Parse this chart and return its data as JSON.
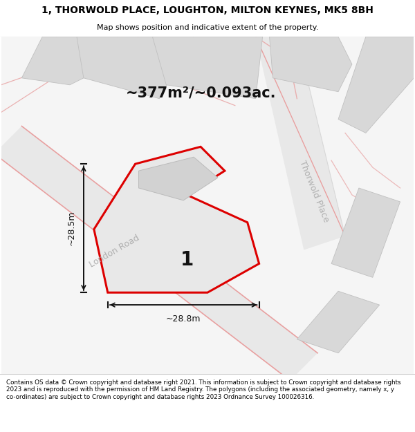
{
  "title_line1": "1, THORWOLD PLACE, LOUGHTON, MILTON KEYNES, MK5 8BH",
  "title_line2": "Map shows position and indicative extent of the property.",
  "area_text": "~377m²/~0.093ac.",
  "label_number": "1",
  "dim_width": "~28.8m",
  "dim_height": "~28.5m",
  "road_label1": "London Road",
  "road_label2": "Thorwold Place",
  "footer_text": "Contains OS data © Crown copyright and database right 2021. This information is subject to Crown copyright and database rights 2023 and is reproduced with the permission of HM Land Registry. The polygons (including the associated geometry, namely x, y co-ordinates) are subject to Crown copyright and database rights 2023 Ordnance Survey 100026316.",
  "map_bg": "#f0f0f0",
  "white_bg": "#ffffff",
  "property_fill": "#e8e8e8",
  "property_outline": "#dd0000",
  "building_fill": "#d2d2d2",
  "building_edge": "#bbbbbb",
  "road_fill": "#e0e0e0",
  "road_edge": "#c8c8c8",
  "pink_line": "#e8a0a0",
  "dim_arrow_color": "#111111",
  "text_dark": "#111111",
  "text_gray": "#aaaaaa",
  "title_fontsize": 10,
  "subtitle_fontsize": 8,
  "area_fontsize": 15,
  "label_fontsize": 20,
  "dim_fontsize": 9,
  "road_fontsize": 9,
  "footer_fontsize": 6.3
}
